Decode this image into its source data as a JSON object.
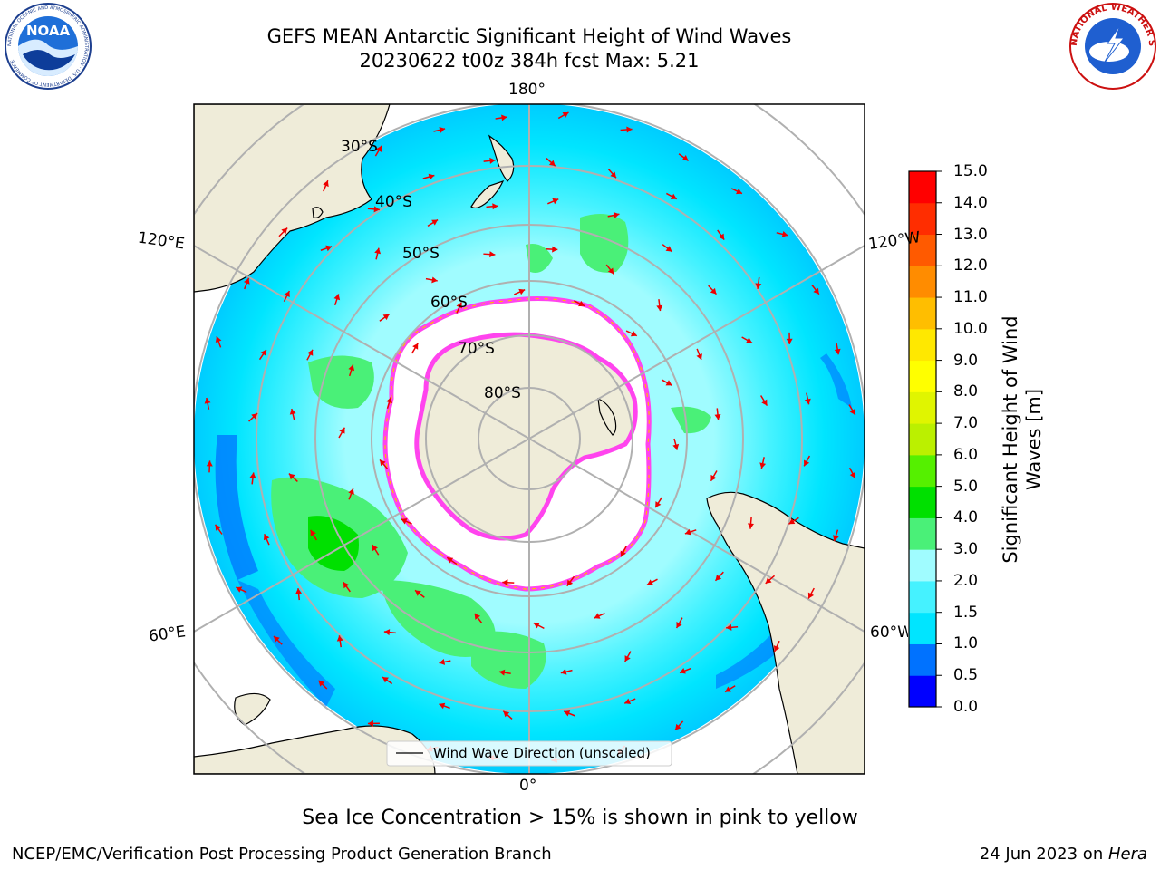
{
  "header": {
    "title_line1": "GEFS MEAN Antarctic Significant Height of Wind Waves",
    "title_line2": "20230622 t00z 384h fcst   Max: 5.21"
  },
  "logos": {
    "left": "NOAA",
    "left_ring_text": "NATIONAL OCEANIC AND ATMOSPHERIC ADMINISTRATION · U.S. DEPARTMENT OF COMMERCE",
    "right_ring_text": "NATIONAL WEATHER SERVICE"
  },
  "map": {
    "longitude_labels": {
      "top": "180°",
      "bottom": "0°",
      "upper_left": "120°E",
      "upper_right": "120°W",
      "lower_left": "60°E",
      "lower_right": "60°W"
    },
    "latitude_labels": [
      "30°S",
      "40°S",
      "50°S",
      "60°S",
      "70°S",
      "80°S"
    ],
    "legend_label": "Wind Wave Direction (unscaled)",
    "colors": {
      "land": "#efecd9",
      "sea_ice": "#ffffff",
      "ice_edge": "#ff44ee",
      "arrow": "#ee0000",
      "grid": "#b0b0b0"
    }
  },
  "colorbar": {
    "label": "Significant Height of Wind Waves [m]",
    "label_line1": "Significant Height of Wind",
    "label_line2": "Waves [m]",
    "ticks": [
      "0.0",
      "0.5",
      "1.0",
      "1.5",
      "2.0",
      "3.0",
      "4.0",
      "5.0",
      "6.0",
      "7.0",
      "8.0",
      "9.0",
      "10.0",
      "11.0",
      "12.0",
      "13.0",
      "14.0",
      "15.0"
    ],
    "colors": [
      "#0000ff",
      "#0072ff",
      "#00e5ff",
      "#45f2ff",
      "#a0fcff",
      "#4af078",
      "#00e000",
      "#55f000",
      "#bbf000",
      "#e0f500",
      "#ffff00",
      "#ffe800",
      "#ffbe00",
      "#ff8c00",
      "#ff5a00",
      "#ff2d00",
      "#ff0000"
    ]
  },
  "caption": "Sea Ice Concentration > 15% is shown in pink to yellow",
  "footer": {
    "left": "NCEP/EMC/Verification Post Processing Product Generation Branch",
    "right_date": "24 Jun 2023 on ",
    "right_machine": "Hera"
  }
}
